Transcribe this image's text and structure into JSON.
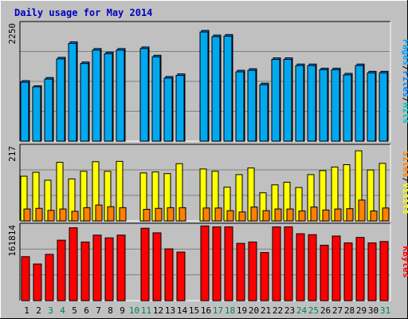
{
  "chart_data": [
    {
      "type": "bar",
      "title": "Daily usage for May 2014",
      "ylabel_max": "2250",
      "right_label": {
        "parts": [
          "Pages",
          "/",
          "Files",
          "/",
          "Hits"
        ]
      },
      "colors": {
        "pages": "#00a0ff",
        "files": "#0080ff",
        "hits": "#00ffff"
      },
      "categories": [
        "1",
        "2",
        "3",
        "4",
        "5",
        "6",
        "7",
        "8",
        "9",
        "10",
        "11",
        "12",
        "13",
        "14",
        "15",
        "16",
        "17",
        "18",
        "19",
        "20",
        "21",
        "22",
        "23",
        "24",
        "25",
        "26",
        "27",
        "28",
        "29",
        "30",
        "31"
      ],
      "weekend_days": [
        "3",
        "4",
        "10",
        "11",
        "17",
        "18",
        "24",
        "25",
        "31"
      ],
      "ylim": [
        0,
        2250
      ],
      "series": [
        {
          "name": "Hits",
          "values": [
            1170,
            1070,
            1230,
            1620,
            1920,
            1530,
            1790,
            1720,
            1790,
            null,
            1820,
            1660,
            1250,
            1300,
            null,
            2140,
            2050,
            2060,
            1370,
            1400,
            1120,
            1610,
            1610,
            1490,
            1490,
            1410,
            1410,
            1310,
            1490,
            1350,
            1350
          ]
        },
        {
          "name": "Pages",
          "values": [
            1140,
            1050,
            1200,
            1590,
            1890,
            1500,
            1760,
            1690,
            1760,
            null,
            1790,
            1630,
            1220,
            1270,
            null,
            2110,
            2020,
            2030,
            1340,
            1370,
            1090,
            1580,
            1580,
            1460,
            1460,
            1380,
            1380,
            1280,
            1460,
            1320,
            1320
          ]
        }
      ]
    },
    {
      "type": "bar",
      "ylabel_max": "217",
      "right_label": {
        "parts": [
          "Sites",
          "/",
          "Visits"
        ]
      },
      "colors": {
        "sites": "#ff8000",
        "visits": "#ffff00"
      },
      "ylim": [
        0,
        217
      ],
      "series": [
        {
          "name": "Visits",
          "values": [
            135,
            147,
            123,
            177,
            127,
            150,
            179,
            150,
            180,
            null,
            145,
            148,
            143,
            173,
            null,
            157,
            150,
            102,
            140,
            160,
            85,
            109,
            117,
            101,
            140,
            152,
            163,
            170,
            212,
            154,
            174
          ]
        },
        {
          "name": "Sites",
          "values": [
            36,
            38,
            32,
            36,
            29,
            40,
            48,
            43,
            40,
            null,
            35,
            38,
            40,
            40,
            null,
            39,
            39,
            31,
            27,
            42,
            31,
            36,
            36,
            30,
            42,
            33,
            36,
            37,
            63,
            30,
            39
          ]
        }
      ]
    },
    {
      "type": "bar",
      "ylabel_max": "161814",
      "right_label": {
        "parts": [
          "KBytes"
        ]
      },
      "colors": {
        "kbytes": "#ff0000"
      },
      "ylim": [
        0,
        161814
      ],
      "series": [
        {
          "name": "KBytes",
          "values": [
            96000,
            80000,
            101000,
            132000,
            159000,
            128000,
            143000,
            137000,
            143000,
            null,
            158000,
            148000,
            113000,
            106000,
            null,
            163000,
            161000,
            161000,
            125000,
            128000,
            105000,
            161000,
            161000,
            146000,
            144000,
            121000,
            141000,
            126000,
            138000,
            126000,
            129000
          ]
        }
      ]
    }
  ]
}
